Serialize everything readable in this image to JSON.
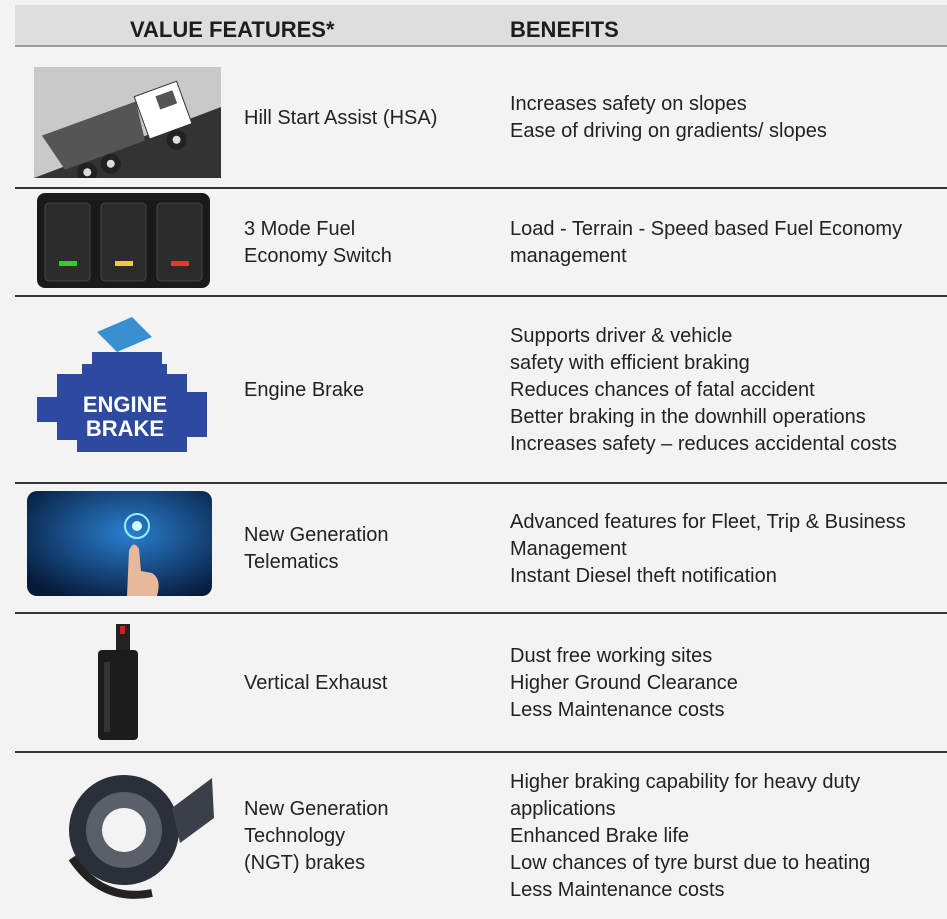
{
  "header": {
    "columns": [
      "VALUE FEATURES*",
      "BENEFITS"
    ]
  },
  "rows": [
    {
      "feature": [
        "Hill Start Assist (HSA)"
      ],
      "benefits": [
        "Increases safety on slopes",
        "Ease of driving on gradients/ slopes"
      ]
    },
    {
      "feature": [
        "3 Mode Fuel",
        "Economy Switch"
      ],
      "benefits": [
        "Load - Terrain - Speed based Fuel Economy",
        "management"
      ]
    },
    {
      "feature": [
        "Engine Brake"
      ],
      "icon_label": [
        "ENGINE",
        "BRAKE"
      ],
      "benefits": [
        "Supports driver & vehicle",
        "safety with efficient braking",
        "Reduces chances of fatal accident",
        "Better braking in the downhill operations",
        "Increases safety – reduces accidental costs"
      ]
    },
    {
      "feature": [
        "New Generation",
        "Telematics"
      ],
      "benefits": [
        "Advanced features for Fleet, Trip & Business",
        "Management",
        "Instant Diesel theft notification"
      ]
    },
    {
      "feature": [
        "Vertical Exhaust"
      ],
      "benefits": [
        "Dust free working sites",
        "Higher Ground Clearance",
        "Less Maintenance costs"
      ]
    },
    {
      "feature": [
        "New Generation",
        "Technology",
        "(NGT) brakes"
      ],
      "benefits": [
        "Higher braking capability for heavy duty",
        "applications",
        "Enhanced Brake life",
        "Low chances of tyre burst due to heating",
        "Less Maintenance costs"
      ]
    }
  ]
}
